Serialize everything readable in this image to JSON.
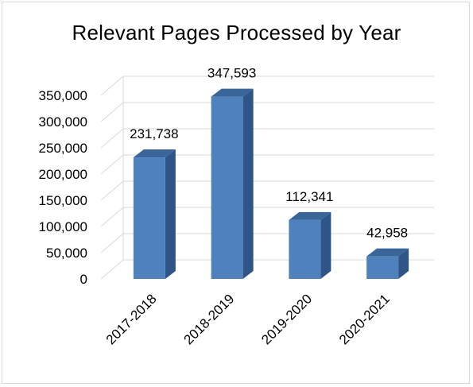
{
  "chart_data": {
    "type": "bar",
    "title": "Relevant Pages Processed  by Year",
    "categories": [
      "2017-2018",
      "2018-2019",
      "2019-2020",
      "2020-2021"
    ],
    "values": [
      231738,
      347593,
      112341,
      42958
    ],
    "data_labels": [
      "231,738",
      "347,593",
      "112,341",
      "42,958"
    ],
    "ylim": [
      0,
      350000
    ],
    "y_ticks": [
      0,
      50000,
      100000,
      150000,
      200000,
      250000,
      300000,
      350000
    ],
    "y_tick_labels": [
      "0",
      "50,000",
      "100,000",
      "150,000",
      "200,000",
      "250,000",
      "300,000",
      "350,000"
    ],
    "grid": true,
    "style": "3d-column",
    "colors": {
      "bar_front": "#4f81bd",
      "bar_side": "#2f5488",
      "bar_top": "#3a6599",
      "grid": "#d9d9d9"
    }
  }
}
